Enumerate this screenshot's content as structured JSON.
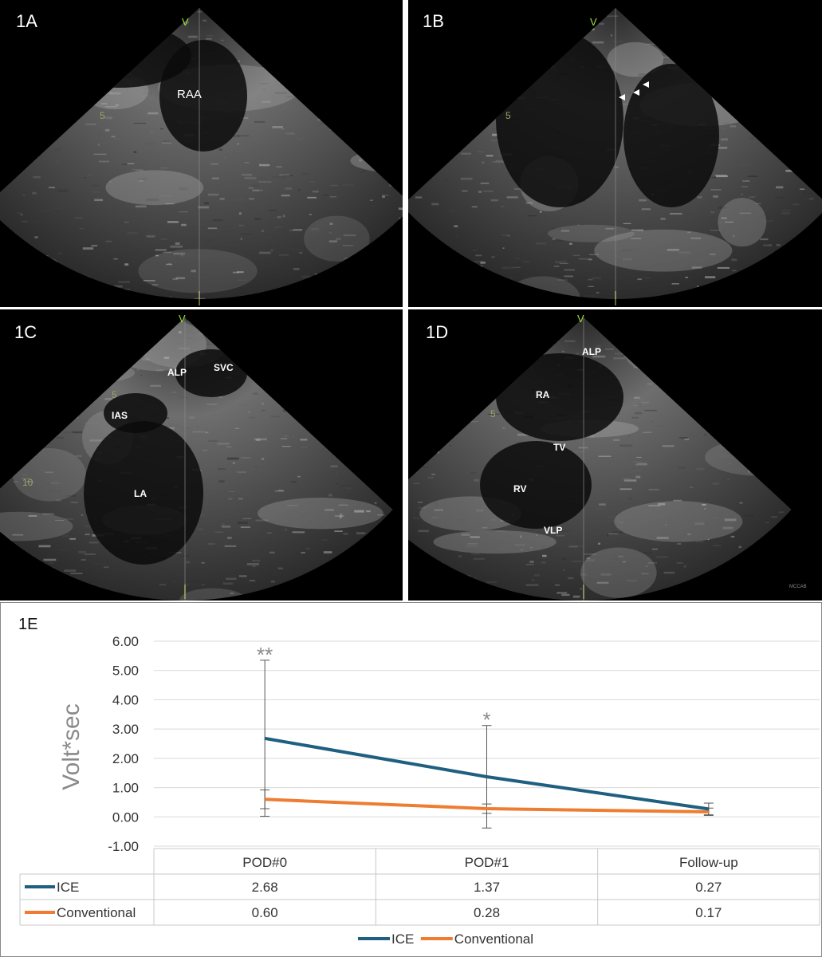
{
  "panels": [
    {
      "id": "1A",
      "labels": [
        "RAA"
      ],
      "depth_marks": [
        "5"
      ],
      "marker": "V"
    },
    {
      "id": "1B",
      "labels": [],
      "depth_marks": [
        "5"
      ],
      "marker": "V"
    },
    {
      "id": "1C",
      "labels": [
        "ALP",
        "SVC",
        "IAS",
        "LA"
      ],
      "depth_marks": [
        "5",
        "10"
      ],
      "marker": "V"
    },
    {
      "id": "1D",
      "labels": [
        "ALP",
        "RA",
        "TV",
        "RV",
        "VLP"
      ],
      "depth_marks": [
        "5"
      ],
      "marker": "V",
      "corner_text": "MCCAB"
    }
  ],
  "chart_data": {
    "type": "line",
    "panel_label": "1E",
    "ylabel": "Volt*sec",
    "ylim": [
      -1.0,
      6.0
    ],
    "yticks": [
      "6.00",
      "5.00",
      "4.00",
      "3.00",
      "2.00",
      "1.00",
      "0.00",
      "-1.00"
    ],
    "categories": [
      "POD#0",
      "POD#1",
      "Follow-up"
    ],
    "series": [
      {
        "name": "ICE",
        "color": "#1f5f7f",
        "values": [
          2.68,
          1.37,
          0.27
        ],
        "labels": [
          "2.68",
          "1.37",
          "0.27"
        ],
        "err_high": [
          5.35,
          3.12,
          0.47
        ],
        "err_low": [
          0.02,
          -0.38,
          0.07
        ]
      },
      {
        "name": "Conventional",
        "color": "#ee7d31",
        "values": [
          0.6,
          0.28,
          0.17
        ],
        "labels": [
          "0.60",
          "0.28",
          "0.17"
        ],
        "err_high": [
          0.92,
          0.44,
          0.3
        ],
        "err_low": [
          0.28,
          0.12,
          0.05
        ]
      }
    ],
    "annotations": [
      {
        "category": "POD#0",
        "text": "**"
      },
      {
        "category": "POD#1",
        "text": "*"
      }
    ],
    "legend_position": "bottom"
  }
}
